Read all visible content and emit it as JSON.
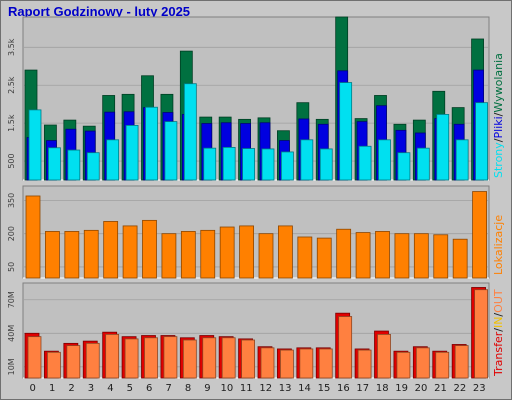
{
  "title": "Raport Godzinowy -  luty 2025",
  "colors": {
    "background": "#c8c8c8",
    "plot_bg": "#c0c0c0",
    "title": "#0000c8",
    "strony": "#007040",
    "pliki": "#0000e0",
    "wywolania": "#00e0f0",
    "lokalizacje": "#ff8000",
    "transfer": "#e00000",
    "in": "#f0c000",
    "out": "#ff8040"
  },
  "chart_data": [
    {
      "type": "bar",
      "name": "strony-pliki-wywolania",
      "categories": [
        "0",
        "1",
        "2",
        "3",
        "4",
        "5",
        "6",
        "7",
        "8",
        "9",
        "10",
        "11",
        "12",
        "13",
        "14",
        "15",
        "16",
        "17",
        "18",
        "19",
        "20",
        "21",
        "22",
        "23"
      ],
      "yticks": [
        "500",
        "1.5k",
        "2.5k",
        "3.5k"
      ],
      "ytick_values": [
        500,
        1500,
        2500,
        3500
      ],
      "ylim": [
        0,
        4300
      ],
      "series": [
        {
          "name": "Strony",
          "values": [
            2900,
            1450,
            1580,
            1420,
            2230,
            2260,
            2750,
            2260,
            3400,
            1660,
            1660,
            1600,
            1640,
            1300,
            2040,
            1600,
            4300,
            1620,
            2230,
            1470,
            1580,
            2340,
            1910,
            3720
          ]
        },
        {
          "name": "Pliki",
          "values": [
            1120,
            1040,
            1340,
            1290,
            1790,
            1800,
            1910,
            1780,
            1730,
            1490,
            1510,
            1490,
            1510,
            1040,
            1610,
            1470,
            2880,
            1540,
            1960,
            1310,
            1240,
            1620,
            1470,
            2900
          ]
        },
        {
          "name": "Wywolania",
          "values": [
            1850,
            850,
            790,
            720,
            1060,
            1440,
            1920,
            1540,
            2540,
            840,
            860,
            830,
            820,
            740,
            1060,
            820,
            2570,
            890,
            1060,
            720,
            840,
            1730,
            1060,
            2040
          ]
        }
      ],
      "ylabel_parts": [
        "Strony",
        "Pliki",
        "Wywolania"
      ]
    },
    {
      "type": "bar",
      "name": "lokalizacje",
      "categories": [
        "0",
        "1",
        "2",
        "3",
        "4",
        "5",
        "6",
        "7",
        "8",
        "9",
        "10",
        "11",
        "12",
        "13",
        "14",
        "15",
        "16",
        "17",
        "18",
        "19",
        "20",
        "21",
        "22",
        "23"
      ],
      "yticks": [
        "50",
        "200",
        "350"
      ],
      "ytick_values": [
        50,
        200,
        350
      ],
      "ylim": [
        0,
        415
      ],
      "series": [
        {
          "name": "Lokalizacje",
          "values": [
            370,
            210,
            210,
            215,
            255,
            235,
            260,
            200,
            210,
            215,
            230,
            235,
            200,
            235,
            185,
            180,
            220,
            205,
            210,
            200,
            200,
            195,
            175,
            390
          ]
        }
      ],
      "ylabel_parts": [
        "Lokalizacje"
      ]
    },
    {
      "type": "bar",
      "name": "transfer",
      "categories": [
        "0",
        "1",
        "2",
        "3",
        "4",
        "5",
        "6",
        "7",
        "8",
        "9",
        "10",
        "11",
        "12",
        "13",
        "14",
        "15",
        "16",
        "17",
        "18",
        "19",
        "20",
        "21",
        "22",
        "23"
      ],
      "yticks": [
        "10M",
        "40M",
        "70M"
      ],
      "ytick_values": [
        10,
        40,
        70
      ],
      "ylim": [
        0,
        85
      ],
      "series": [
        {
          "name": "IN",
          "values": [
            40,
            24,
            31,
            33,
            41,
            37,
            38,
            38,
            36,
            38,
            37,
            35,
            28,
            26,
            27,
            27,
            58,
            26,
            42,
            24,
            28,
            24,
            30,
            81
          ]
        },
        {
          "name": "OUT",
          "values": [
            37,
            23,
            29,
            31,
            39,
            35,
            36,
            37,
            34,
            36,
            36,
            34,
            27,
            25,
            26,
            26,
            55,
            25,
            39,
            23,
            27,
            23,
            29,
            79
          ]
        }
      ],
      "ylabel_parts": [
        "Transfer",
        "IN",
        "OUT"
      ]
    }
  ]
}
